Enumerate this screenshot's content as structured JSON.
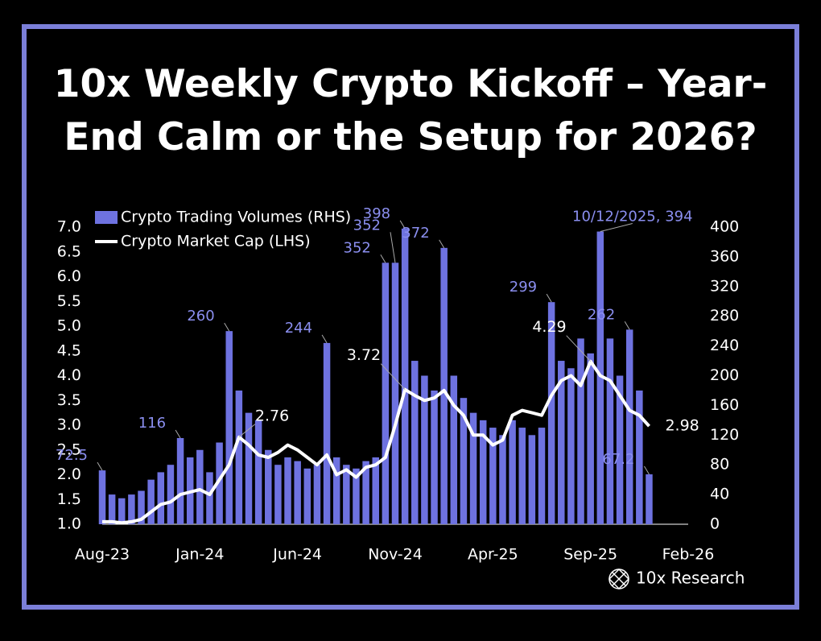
{
  "chart_data": {
    "type": "bar-line",
    "title": "10x Weekly Crypto Kickoff – Year-End Calm or the Setup for 2026?",
    "categories": [
      "Aug-23",
      null,
      null,
      null,
      null,
      null,
      null,
      null,
      null,
      null,
      "Jan-24",
      null,
      null,
      null,
      null,
      null,
      null,
      null,
      null,
      null,
      "Jun-24",
      null,
      null,
      null,
      null,
      null,
      null,
      null,
      null,
      null,
      "Nov-24",
      null,
      null,
      null,
      null,
      null,
      null,
      null,
      null,
      null,
      "Apr-25",
      null,
      null,
      null,
      null,
      null,
      null,
      null,
      null,
      null,
      "Sep-25",
      null,
      null,
      null,
      null,
      null,
      null,
      null,
      null,
      null,
      "Feb-26"
    ],
    "series": [
      {
        "name": "Crypto Trading Volumes (RHS)",
        "type": "bar",
        "axis": "y2",
        "color": "#6e72e0",
        "values": [
          72.5,
          40,
          35,
          40,
          45,
          60,
          70,
          80,
          116,
          90,
          100,
          70,
          110,
          260,
          180,
          150,
          140,
          100,
          80,
          90,
          85,
          75,
          80,
          244,
          90,
          80,
          75,
          85,
          90,
          352,
          352,
          398,
          220,
          200,
          180,
          372,
          200,
          170,
          150,
          140,
          130,
          120,
          140,
          130,
          120,
          130,
          299,
          220,
          210,
          250,
          230,
          394,
          250,
          200,
          262,
          180,
          67.2,
          null,
          null,
          null,
          null
        ],
        "value_labels": [
          "72.5",
          null,
          null,
          null,
          null,
          null,
          null,
          null,
          "116",
          null,
          null,
          null,
          null,
          "260",
          null,
          null,
          null,
          null,
          null,
          null,
          null,
          null,
          null,
          "244",
          null,
          null,
          null,
          null,
          null,
          "352",
          "352",
          "398",
          null,
          null,
          null,
          "372",
          null,
          null,
          null,
          null,
          null,
          null,
          null,
          null,
          null,
          null,
          "299",
          null,
          null,
          null,
          null,
          "10/12/2025, 394",
          null,
          null,
          "262",
          null,
          "67.2",
          null,
          null,
          null,
          null
        ]
      },
      {
        "name": "Crypto Market Cap (LHS)",
        "type": "line",
        "axis": "y",
        "color": "#ffffff",
        "values": [
          1.05,
          1.05,
          1.03,
          1.05,
          1.1,
          1.25,
          1.4,
          1.45,
          1.6,
          1.65,
          1.7,
          1.6,
          1.9,
          2.2,
          2.76,
          2.6,
          2.4,
          2.35,
          2.45,
          2.6,
          2.5,
          2.35,
          2.2,
          2.4,
          2.0,
          2.1,
          1.95,
          2.15,
          2.2,
          2.35,
          3.0,
          3.72,
          3.6,
          3.5,
          3.55,
          3.7,
          3.4,
          3.2,
          2.8,
          2.8,
          2.6,
          2.7,
          3.2,
          3.3,
          3.25,
          3.2,
          3.6,
          3.9,
          4.0,
          3.8,
          4.29,
          4.0,
          3.9,
          3.6,
          3.3,
          3.2,
          2.98,
          null,
          null,
          null,
          null
        ],
        "value_labels": [
          null,
          null,
          null,
          null,
          null,
          null,
          null,
          null,
          null,
          null,
          null,
          null,
          null,
          null,
          "2.76",
          null,
          null,
          null,
          null,
          null,
          null,
          null,
          null,
          null,
          null,
          null,
          null,
          null,
          null,
          null,
          null,
          "3.72",
          null,
          null,
          null,
          null,
          null,
          null,
          null,
          null,
          null,
          null,
          null,
          null,
          null,
          null,
          null,
          null,
          null,
          null,
          "4.29",
          null,
          null,
          null,
          null,
          null,
          "2.98",
          null,
          null,
          null,
          null
        ]
      }
    ],
    "ylim": [
      1,
      7
    ],
    "yticks": [
      {
        "value": 1,
        "label": "1.0"
      },
      1.5,
      {
        "value": 2,
        "label": "2.0"
      },
      2.5,
      {
        "value": 3,
        "label": "3.0"
      },
      3.5,
      {
        "value": 4,
        "label": "4.0"
      },
      4.5,
      {
        "value": 5,
        "label": "5.0"
      },
      5.5,
      {
        "value": 6,
        "label": "6.0"
      },
      6.5,
      {
        "value": 7,
        "label": "7.0"
      }
    ],
    "y2lim": [
      0,
      400
    ],
    "y2ticks": [
      0,
      40,
      80,
      120,
      160,
      200,
      240,
      280,
      320,
      360,
      400
    ],
    "legend": "upper left",
    "footer": "10x Research"
  }
}
